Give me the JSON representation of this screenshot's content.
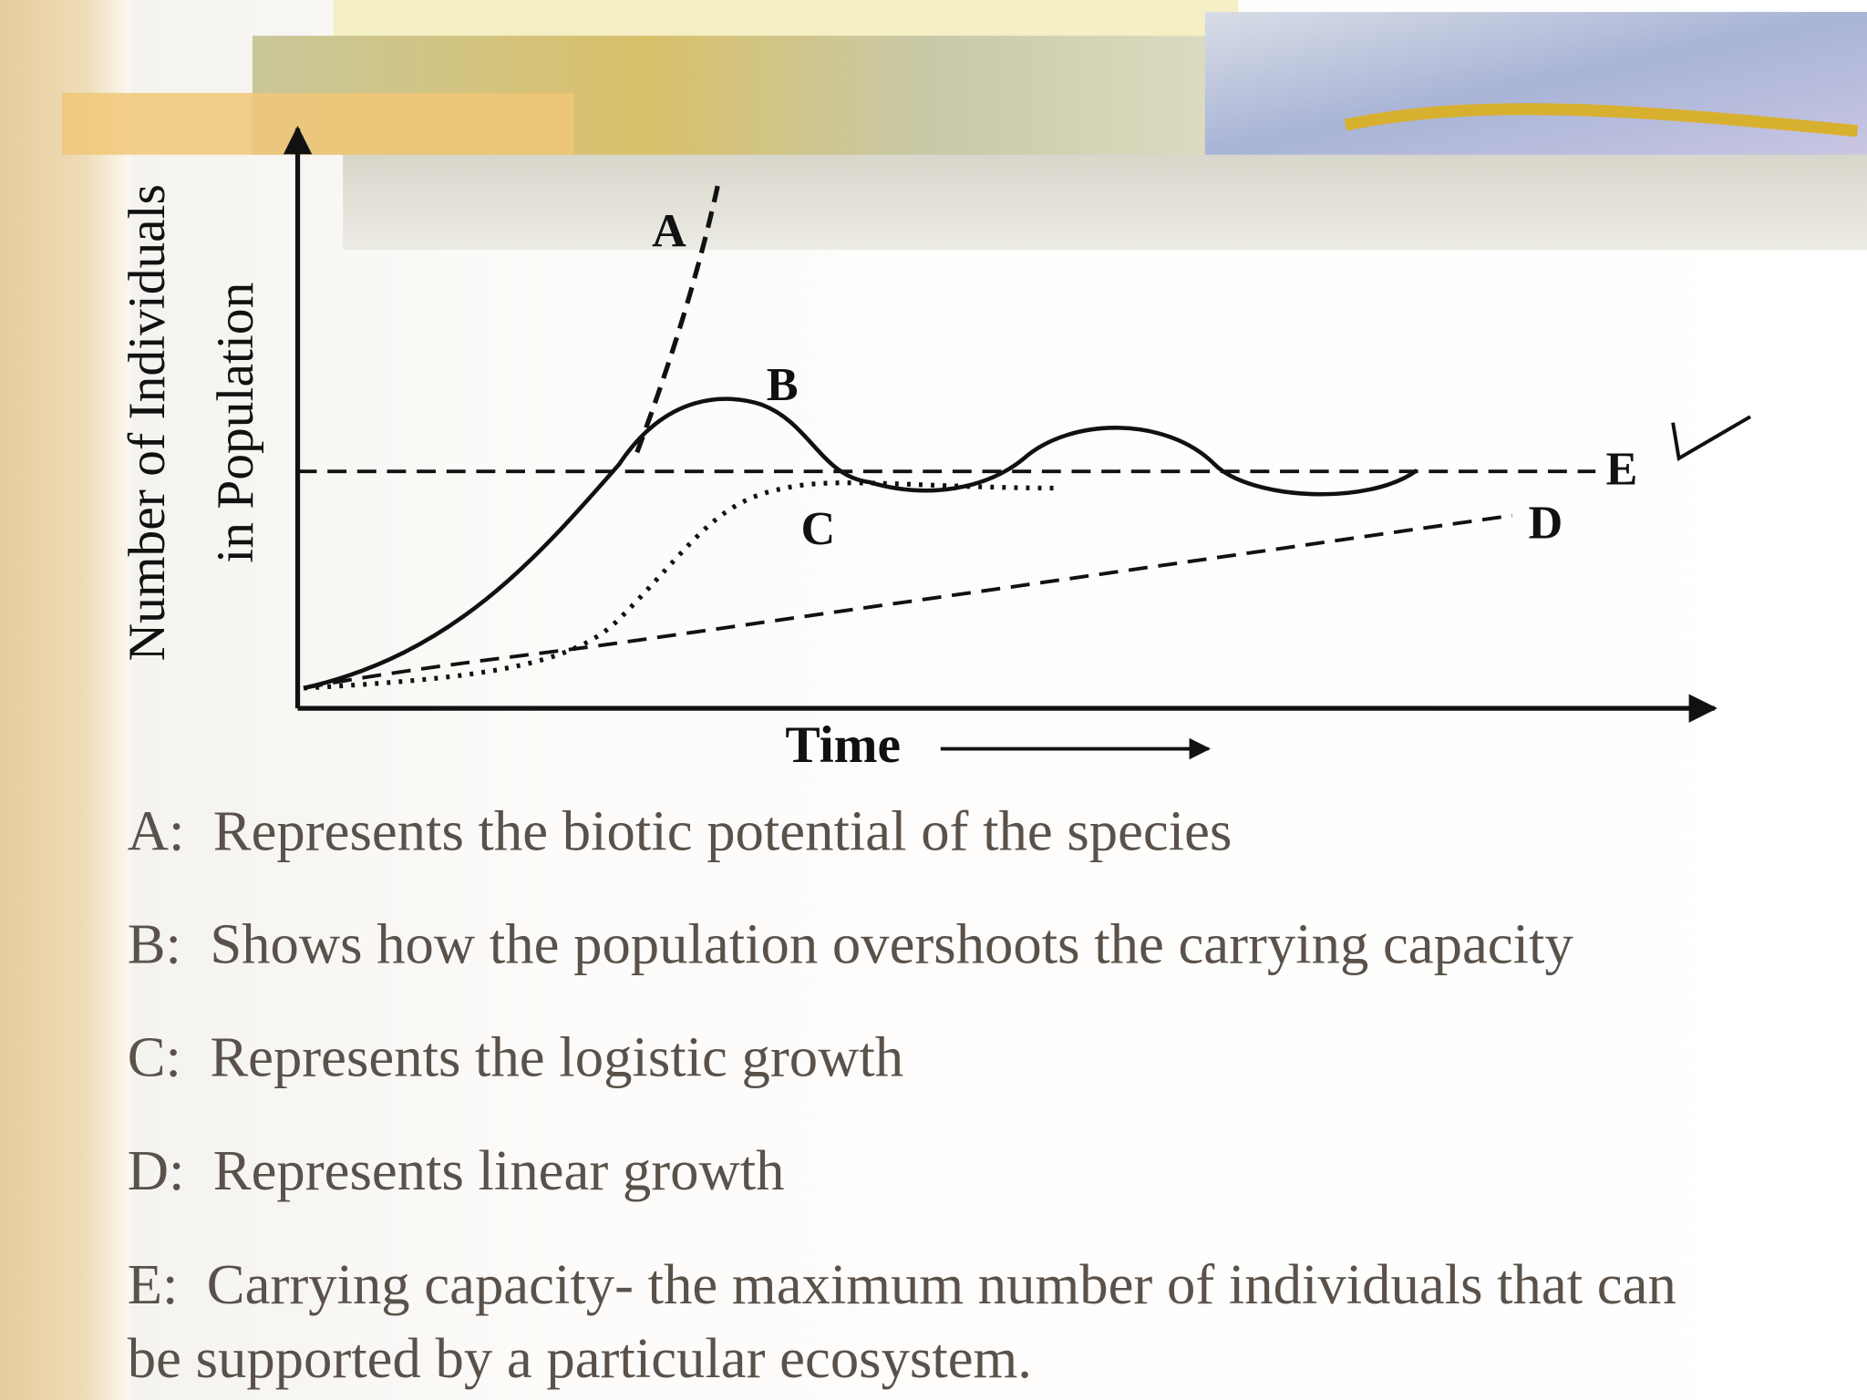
{
  "diagram": {
    "y_axis_label": [
      "Number of Individuals",
      "in Population"
    ],
    "x_axis_label": "Time",
    "curve_labels": {
      "A": "A",
      "B": "B",
      "C": "C",
      "D": "D",
      "E": "E"
    }
  },
  "legend": [
    "A:  Represents the biotic potential of the species",
    "B:  Shows how the population overshoots the carrying capacity",
    "C:  Represents the logistic growth",
    "D:  Represents linear growth",
    "E:  Carrying capacity- the maximum number of individuals that can",
    "be supported by a particular ecosystem."
  ]
}
